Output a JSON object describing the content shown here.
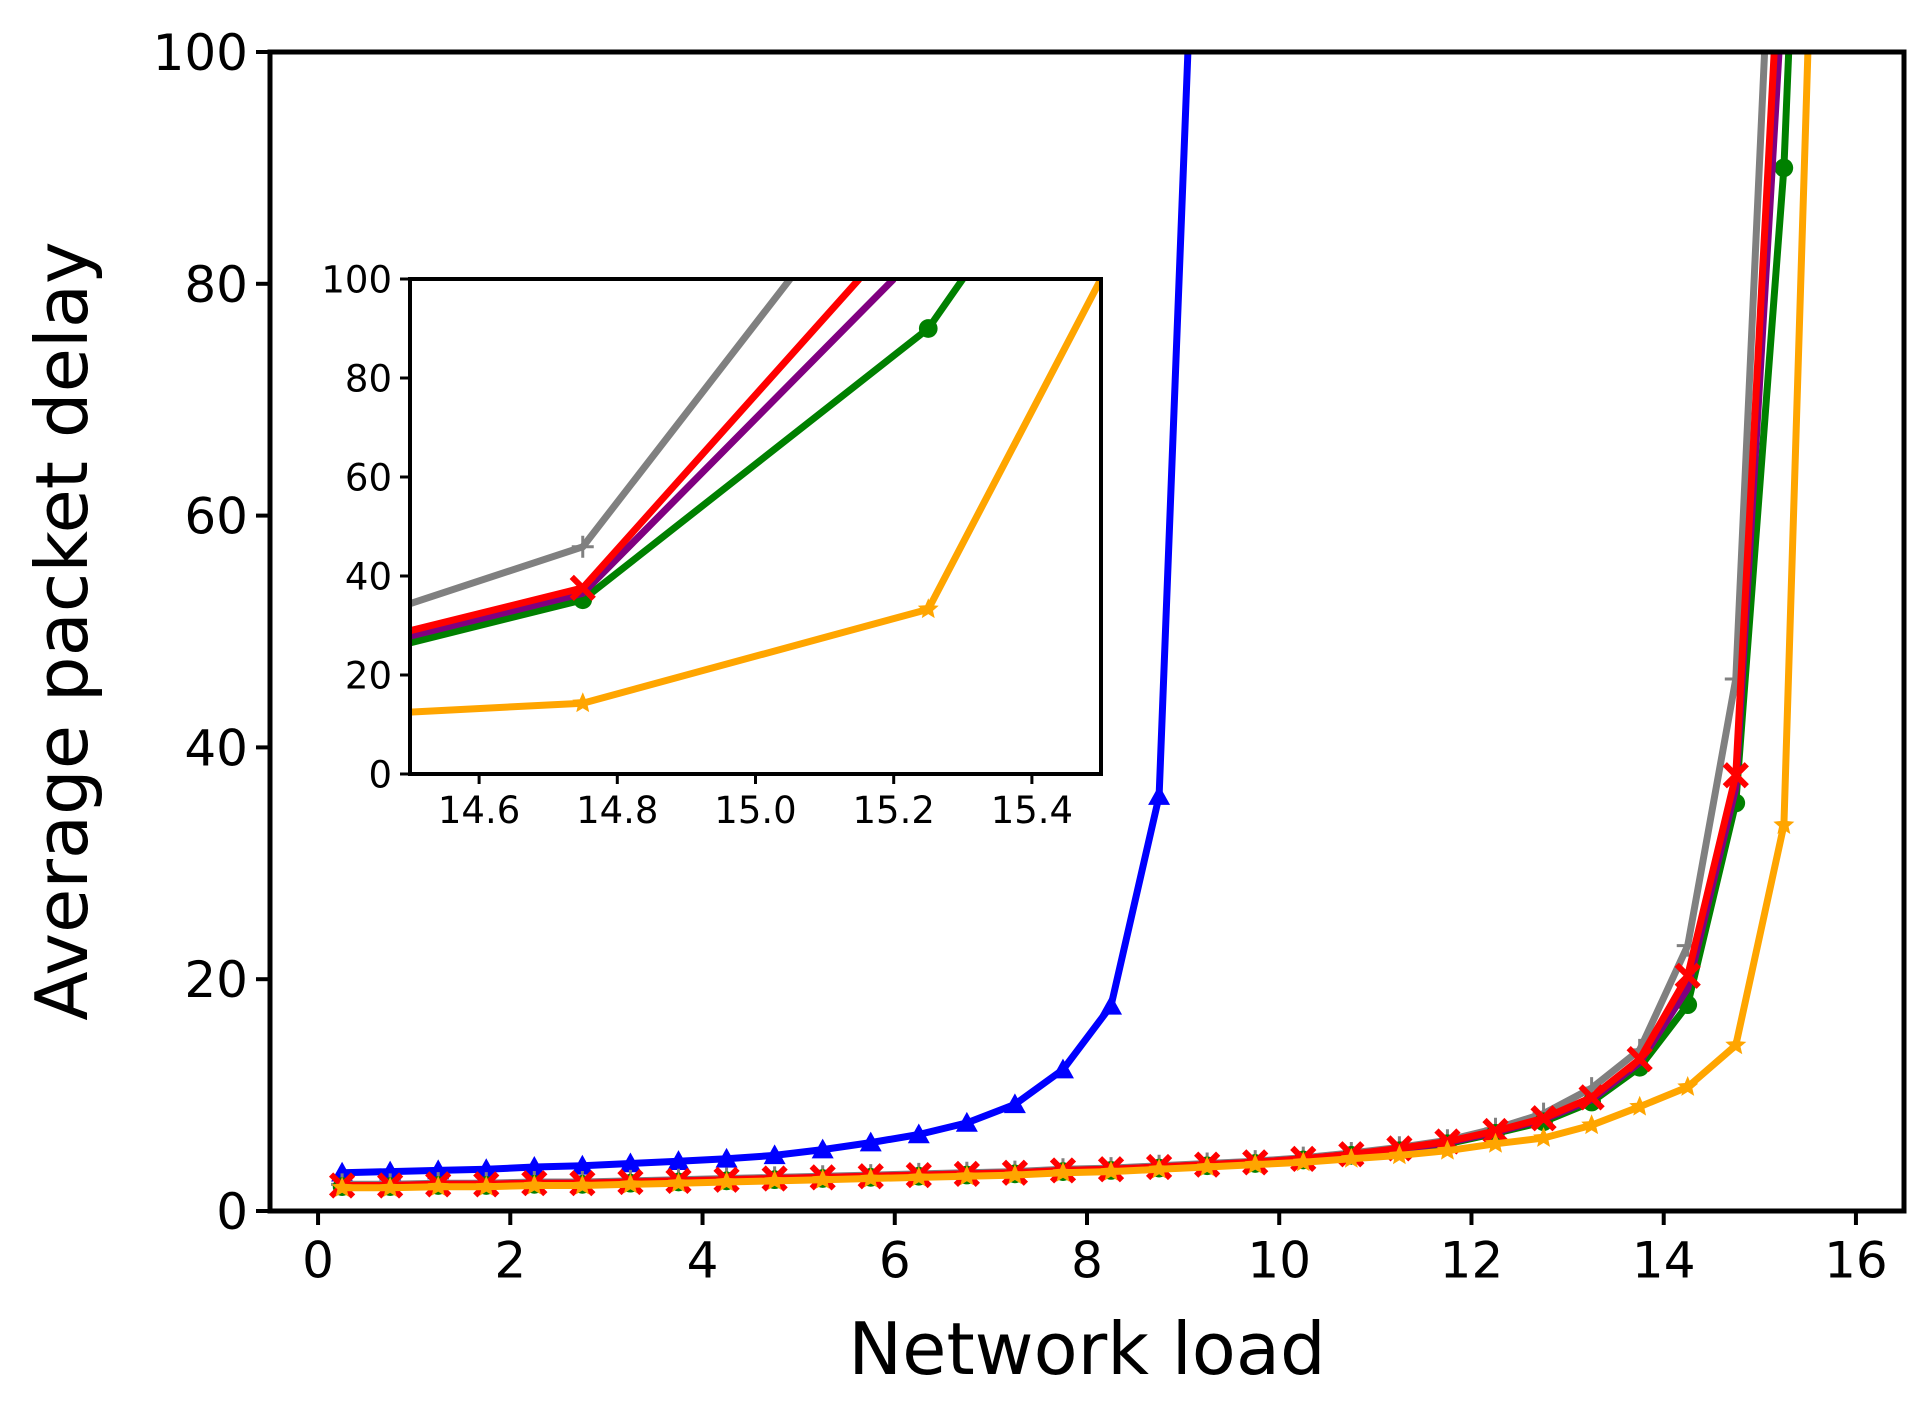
{
  "chart_data": {
    "type": "line",
    "xlabel": "Network load",
    "ylabel": "Average packet delay",
    "xlim": [
      -0.5,
      16.5
    ],
    "ylim": [
      0,
      100
    ],
    "xticks": [
      0,
      2,
      4,
      6,
      8,
      10,
      12,
      14,
      16
    ],
    "yticks": [
      0,
      20,
      40,
      60,
      80,
      100
    ],
    "grid": false,
    "legend": "none",
    "series": [
      {
        "color": "#0000ff",
        "marker": "triangle",
        "x": [
          0.25,
          0.75,
          1.25,
          1.75,
          2.25,
          2.75,
          3.25,
          3.75,
          4.25,
          4.75,
          5.25,
          5.75,
          6.25,
          6.75,
          7.25,
          7.75,
          8.25,
          8.75,
          9.05
        ],
        "y": [
          3.3,
          3.4,
          3.5,
          3.6,
          3.8,
          3.9,
          4.1,
          4.3,
          4.5,
          4.8,
          5.3,
          5.9,
          6.6,
          7.6,
          9.2,
          12.2,
          17.7,
          35.8,
          100
        ]
      },
      {
        "color": "#808080",
        "marker": "plus",
        "x": [
          0.25,
          0.75,
          1.25,
          1.75,
          2.25,
          2.75,
          3.25,
          3.75,
          4.25,
          4.75,
          5.25,
          5.75,
          6.25,
          6.75,
          7.25,
          7.75,
          8.25,
          8.75,
          9.25,
          9.75,
          10.25,
          10.75,
          11.25,
          11.75,
          12.25,
          12.75,
          13.25,
          13.75,
          14.25,
          14.75,
          15.05
        ],
        "y": [
          2.3,
          2.3,
          2.4,
          2.4,
          2.5,
          2.5,
          2.6,
          2.7,
          2.8,
          2.9,
          3.0,
          3.1,
          3.2,
          3.3,
          3.4,
          3.6,
          3.7,
          3.9,
          4.1,
          4.3,
          4.6,
          5.0,
          5.5,
          6.1,
          7.1,
          8.4,
          10.6,
          13.9,
          22.9,
          45.9,
          100
        ]
      },
      {
        "color": "#008000",
        "marker": "circle",
        "x": [
          0.25,
          0.75,
          1.25,
          1.75,
          2.25,
          2.75,
          3.25,
          3.75,
          4.25,
          4.75,
          5.25,
          5.75,
          6.25,
          6.75,
          7.25,
          7.75,
          8.25,
          8.75,
          9.25,
          9.75,
          10.25,
          10.75,
          11.25,
          11.75,
          12.25,
          12.75,
          13.25,
          13.75,
          14.25,
          14.75,
          15.25,
          15.3
        ],
        "y": [
          2.1,
          2.1,
          2.2,
          2.2,
          2.3,
          2.3,
          2.4,
          2.5,
          2.6,
          2.7,
          2.8,
          2.9,
          3.0,
          3.1,
          3.2,
          3.4,
          3.5,
          3.7,
          3.9,
          4.1,
          4.4,
          4.8,
          5.2,
          5.8,
          6.7,
          7.7,
          9.4,
          12.4,
          17.8,
          35.2,
          90,
          100
        ]
      },
      {
        "color": "#800080",
        "marker": "cross",
        "x": [
          0.25,
          0.75,
          1.25,
          1.75,
          2.25,
          2.75,
          3.25,
          3.75,
          4.25,
          4.75,
          5.25,
          5.75,
          6.25,
          6.75,
          7.25,
          7.75,
          8.25,
          8.75,
          9.25,
          9.75,
          10.25,
          10.75,
          11.25,
          11.75,
          12.25,
          12.75,
          13.25,
          13.75,
          14.25,
          14.75,
          15.2
        ],
        "y": [
          2.2,
          2.2,
          2.3,
          2.3,
          2.4,
          2.4,
          2.5,
          2.6,
          2.7,
          2.8,
          2.9,
          3.0,
          3.1,
          3.2,
          3.3,
          3.5,
          3.6,
          3.8,
          4.0,
          4.2,
          4.5,
          4.9,
          5.3,
          5.9,
          6.8,
          7.9,
          9.6,
          12.8,
          19.2,
          36.5,
          100
        ]
      },
      {
        "color": "#ff0000",
        "marker": "x",
        "x": [
          0.25,
          0.75,
          1.25,
          1.75,
          2.25,
          2.75,
          3.25,
          3.75,
          4.25,
          4.75,
          5.25,
          5.75,
          6.25,
          6.75,
          7.25,
          7.75,
          8.25,
          8.75,
          9.25,
          9.75,
          10.25,
          10.75,
          11.25,
          11.75,
          12.25,
          12.75,
          13.25,
          13.75,
          14.25,
          14.75,
          15.15
        ],
        "y": [
          2.2,
          2.2,
          2.3,
          2.3,
          2.4,
          2.4,
          2.5,
          2.6,
          2.7,
          2.8,
          2.9,
          3.0,
          3.1,
          3.2,
          3.3,
          3.5,
          3.6,
          3.8,
          4.0,
          4.2,
          4.5,
          4.9,
          5.4,
          6.0,
          6.9,
          8.0,
          9.8,
          13.1,
          20.3,
          37.6,
          100
        ]
      },
      {
        "color": "#ffa500",
        "marker": "star",
        "x": [
          0.25,
          0.75,
          1.25,
          1.75,
          2.25,
          2.75,
          3.25,
          3.75,
          4.25,
          4.75,
          5.25,
          5.75,
          6.25,
          6.75,
          7.25,
          7.75,
          8.25,
          8.75,
          9.25,
          9.75,
          10.25,
          10.75,
          11.25,
          11.75,
          12.25,
          12.75,
          13.25,
          13.75,
          14.25,
          14.75,
          15.25,
          15.5
        ],
        "y": [
          2.0,
          2.0,
          2.1,
          2.1,
          2.2,
          2.2,
          2.3,
          2.4,
          2.5,
          2.6,
          2.7,
          2.8,
          2.9,
          3.0,
          3.1,
          3.3,
          3.4,
          3.6,
          3.8,
          4.0,
          4.2,
          4.5,
          4.8,
          5.2,
          5.8,
          6.3,
          7.4,
          9.0,
          10.7,
          14.3,
          33.3,
          100
        ]
      }
    ],
    "inset": {
      "xlim": [
        14.5,
        15.5
      ],
      "ylim": [
        0,
        100
      ],
      "xticks": [
        14.6,
        14.8,
        15.0,
        15.2,
        15.4
      ],
      "xtick_labels": [
        "14.6",
        "14.8",
        "15.0",
        "15.2",
        "15.4"
      ],
      "yticks": [
        0,
        20,
        40,
        60,
        80,
        100
      ]
    }
  }
}
